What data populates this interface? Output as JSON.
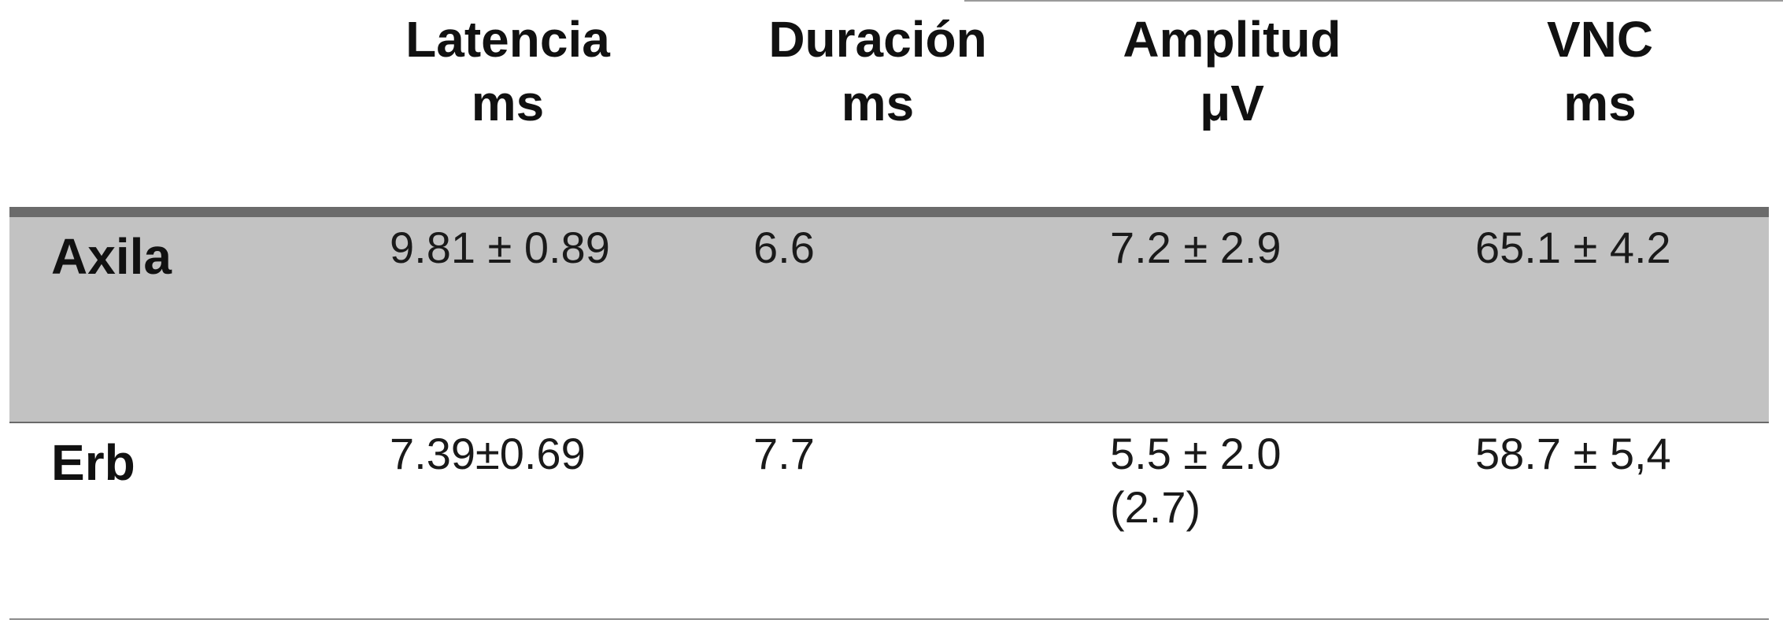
{
  "table": {
    "headers": [
      {
        "line1": "Latencia",
        "line2": "ms"
      },
      {
        "line1": "Duración",
        "line2": "ms"
      },
      {
        "line1": "Amplitud",
        "line2": "μV"
      },
      {
        "line1": "VNC",
        "line2": "ms"
      }
    ],
    "rows": [
      {
        "label": "Axila",
        "latencia": "9.81 ± 0.89",
        "duracion": "6.6",
        "amplitud": "7.2 ± 2.9",
        "amplitud_extra": "",
        "vnc": "65.1 ± 4.2"
      },
      {
        "label": "Erb",
        "latencia": "7.39±0.69",
        "duracion": "7.7",
        "amplitud": "5.5 ± 2.0",
        "amplitud_extra": "(2.7)",
        "vnc": "58.7 ± 5,4"
      }
    ]
  },
  "colors": {
    "row_shade": "#c2c2c2",
    "header_band": "#6b6b6b",
    "text": "#111111"
  }
}
